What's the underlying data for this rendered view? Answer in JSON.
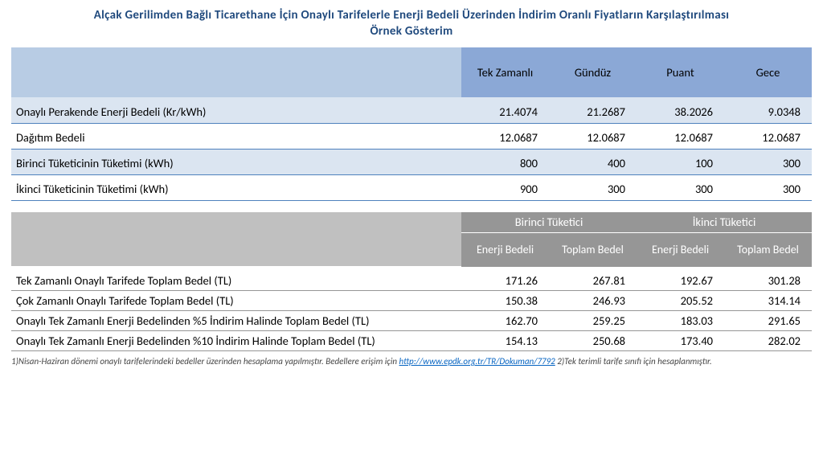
{
  "title_line1": "Alçak Gerilimden Bağlı Ticarethane İçin Onaylı Tarifelerle Enerji Bedeli Üzerinden İndirim Oranlı Fiyatların Karşılaştırılması",
  "title_line2": "Örnek Gösterim",
  "table1": {
    "headers": [
      "Tek Zamanlı",
      "Gündüz",
      "Puant",
      "Gece"
    ],
    "rows": [
      {
        "label": "Onaylı Perakende Enerji Bedeli (Kr/kWh)",
        "v": [
          "21.4074",
          "21.2687",
          "38.2026",
          "9.0348"
        ]
      },
      {
        "label": "Dağıtım Bedeli",
        "v": [
          "12.0687",
          "12.0687",
          "12.0687",
          "12.0687"
        ]
      },
      {
        "label": "Birinci Tüketicinin Tüketimi (kWh)",
        "v": [
          "800",
          "400",
          "100",
          "300"
        ]
      },
      {
        "label": "İkinci Tüketicinin Tüketimi (kWh)",
        "v": [
          "900",
          "300",
          "300",
          "300"
        ]
      }
    ]
  },
  "table2": {
    "group_headers": [
      "Birinci Tüketici",
      "İkinci Tüketici"
    ],
    "sub_headers": [
      "Enerji Bedeli",
      "Toplam Bedel",
      "Enerji Bedeli",
      "Toplam Bedel"
    ],
    "rows": [
      {
        "label": "Tek Zamanlı Onaylı Tarifede Toplam Bedel (TL)",
        "v": [
          "171.26",
          "267.81",
          "192.67",
          "301.28"
        ]
      },
      {
        "label": "Çok Zamanlı Onaylı Tarifede Toplam Bedel (TL)",
        "v": [
          "150.38",
          "246.93",
          "205.52",
          "314.14"
        ]
      },
      {
        "label": "Onaylı Tek Zamanlı Enerji Bedelinden %5 İndirim Halinde Toplam Bedel (TL)",
        "v": [
          "162.70",
          "259.25",
          "183.03",
          "291.65"
        ]
      },
      {
        "label": "Onaylı Tek Zamanlı Enerji Bedelinden %10 İndirim Halinde Toplam Bedel (TL)",
        "v": [
          "154.13",
          "250.68",
          "173.40",
          "282.02"
        ]
      }
    ]
  },
  "footnote": {
    "part1": "1)Nisan-Haziran dönemi onaylı tarifelerindeki bedeller üzerinden hesaplama yapılmıştır. Bedellere erişim için ",
    "link_text": "http://www.epdk.org.tr/TR/Dokuman/7792",
    "part2": "   2)Tek terimli tarife sınıfı için hesaplanmıştır."
  }
}
